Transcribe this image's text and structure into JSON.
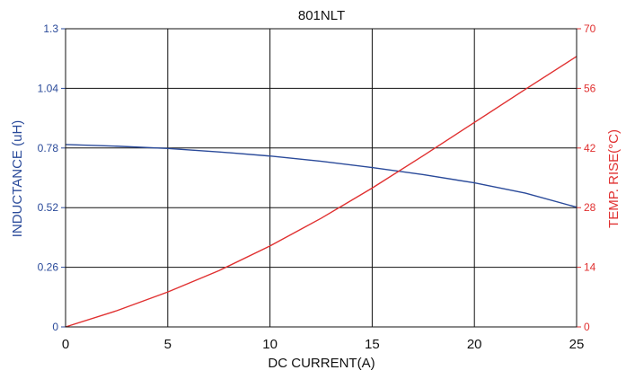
{
  "chart_data": {
    "type": "line",
    "title": "801NLT",
    "xlabel": "DC CURRENT(A)",
    "ylabel_left": "INDUCTANCE (uH)",
    "ylabel_right": "TEMP. RISE(°C)",
    "xlim": [
      0,
      25
    ],
    "ylim_left": [
      0,
      1.3
    ],
    "ylim_right": [
      0,
      70
    ],
    "x_ticks": [
      "0",
      "5",
      "10",
      "15",
      "20",
      "25"
    ],
    "y_left_ticks": [
      "0",
      "0.26",
      "0.52",
      "0.78",
      "1.04",
      "1.3"
    ],
    "y_right_ticks": [
      "0",
      "14",
      "28",
      "42",
      "56",
      "70"
    ],
    "grid": true,
    "series": [
      {
        "axis": "left",
        "color": "#2a4a9a",
        "x": [
          0,
          2.5,
          5,
          7.5,
          10,
          12.5,
          15,
          17.5,
          20,
          22.5,
          25
        ],
        "y": [
          0.795,
          0.788,
          0.778,
          0.763,
          0.745,
          0.722,
          0.695,
          0.664,
          0.628,
          0.583,
          0.522
        ]
      },
      {
        "axis": "right",
        "color": "#e03030",
        "x": [
          0,
          2.5,
          5,
          7.5,
          10,
          12.5,
          15,
          17.5,
          20,
          22.5,
          25
        ],
        "y": [
          0,
          3.8,
          8.2,
          13.2,
          19.0,
          25.5,
          32.6,
          40.2,
          48.0,
          55.8,
          63.5
        ]
      }
    ]
  }
}
